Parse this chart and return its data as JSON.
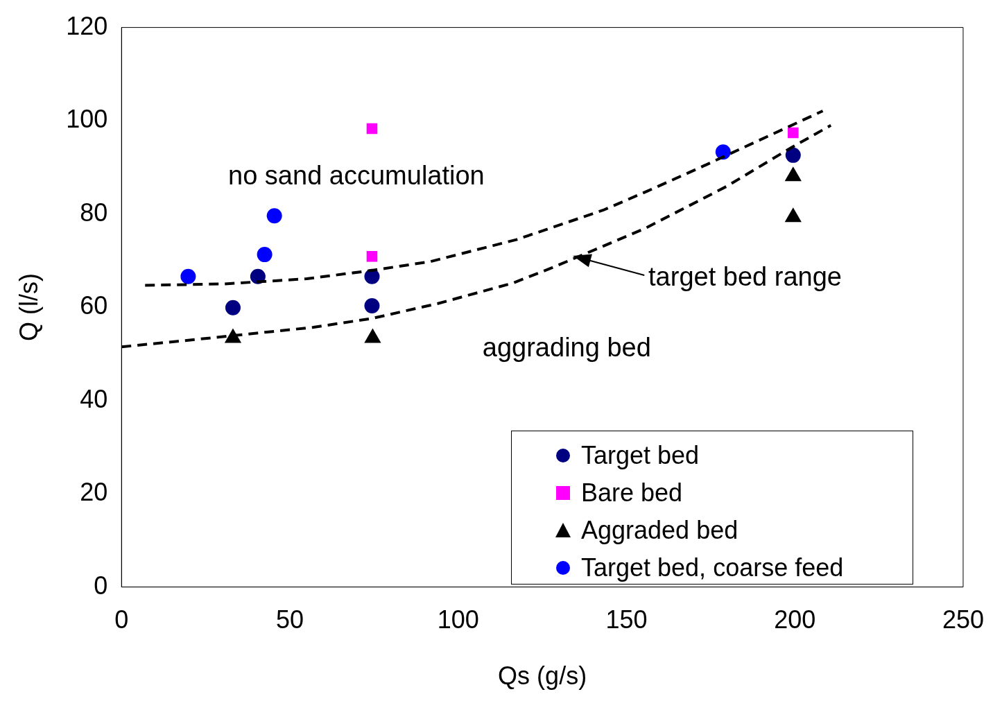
{
  "chart_data": {
    "type": "scatter",
    "xlabel": "Qs (g/s)",
    "ylabel": "Q (l/s)",
    "xlim": [
      0,
      250
    ],
    "xticks": [
      0,
      50,
      100,
      150,
      200,
      250
    ],
    "ylim": [
      0,
      120
    ],
    "yticks": [
      0,
      20,
      40,
      60,
      80,
      100,
      120
    ],
    "grid": false,
    "legend": "bottom right",
    "series": [
      {
        "type": "line",
        "color": "#000000",
        "line_style": "dashed",
        "marker": "none",
        "x": [
          7,
          30.5,
          55,
          74.4,
          91.8,
          117.3,
          143,
          156.2,
          172,
          208.3
        ],
        "values": [
          64.7,
          65.0,
          66.1,
          67.9,
          69.8,
          74.5,
          80.8,
          84.9,
          90.0,
          102.1
        ]
      },
      {
        "type": "line",
        "color": "#000000",
        "line_style": "dashed",
        "marker": "none",
        "x": [
          0,
          22.3,
          57,
          74.4,
          94,
          116.3,
          128,
          155.2,
          179.7,
          199.1,
          210.7
        ],
        "values": [
          51.5,
          53.1,
          55.7,
          57.6,
          60.8,
          65.2,
          68.5,
          76.8,
          85.9,
          94.3,
          99.0
        ]
      },
      {
        "name": "Target bed",
        "color": "#000080",
        "marker": "circle",
        "x": [
          33.1,
          40.5,
          74.4,
          74.4,
          199.5
        ],
        "values": [
          59.9,
          66.6,
          60.3,
          66.6,
          92.6
        ]
      },
      {
        "name": "Bare bed",
        "color": "#ff00ff",
        "marker": "square",
        "x": [
          74.4,
          74.4,
          199.5
        ],
        "values": [
          98.3,
          70.9,
          97.4
        ]
      },
      {
        "name": "Aggraded bed",
        "color": "#000000",
        "marker": "triangle",
        "x": [
          33.1,
          74.6,
          199.5,
          199.5
        ],
        "values": [
          53.4,
          53.4,
          88.1,
          79.3
        ]
      },
      {
        "name": "Target bed, coarse feed",
        "color": "#0000ff",
        "marker": "circle",
        "x": [
          19.8,
          42.5,
          45.4,
          178.7
        ],
        "values": [
          66.6,
          71.3,
          79.6,
          93.3
        ]
      }
    ],
    "annotations": [
      "no sand accumulation",
      "aggrading bed",
      {
        "text": "target bed range",
        "x": 134,
        "y": 71
      }
    ]
  }
}
